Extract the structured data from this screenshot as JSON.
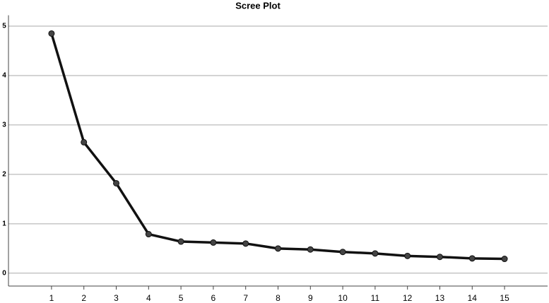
{
  "chart_data": {
    "type": "line",
    "title": "Scree Plot",
    "x": [
      1,
      2,
      3,
      4,
      5,
      6,
      7,
      8,
      9,
      10,
      11,
      12,
      13,
      14,
      15
    ],
    "values": [
      4.85,
      2.65,
      1.82,
      0.79,
      0.64,
      0.62,
      0.6,
      0.5,
      0.48,
      0.43,
      0.4,
      0.35,
      0.33,
      0.3,
      0.29
    ],
    "color": "#111111",
    "xlim": [
      -0.33,
      16.33
    ],
    "xticks": [
      1,
      2,
      3,
      4,
      5,
      6,
      7,
      8,
      9,
      10,
      11,
      12,
      13,
      14,
      15
    ],
    "ylim": [
      -0.26,
      5.22
    ],
    "yticks": [
      0,
      1,
      2,
      3,
      4,
      5
    ],
    "grid": true
  }
}
